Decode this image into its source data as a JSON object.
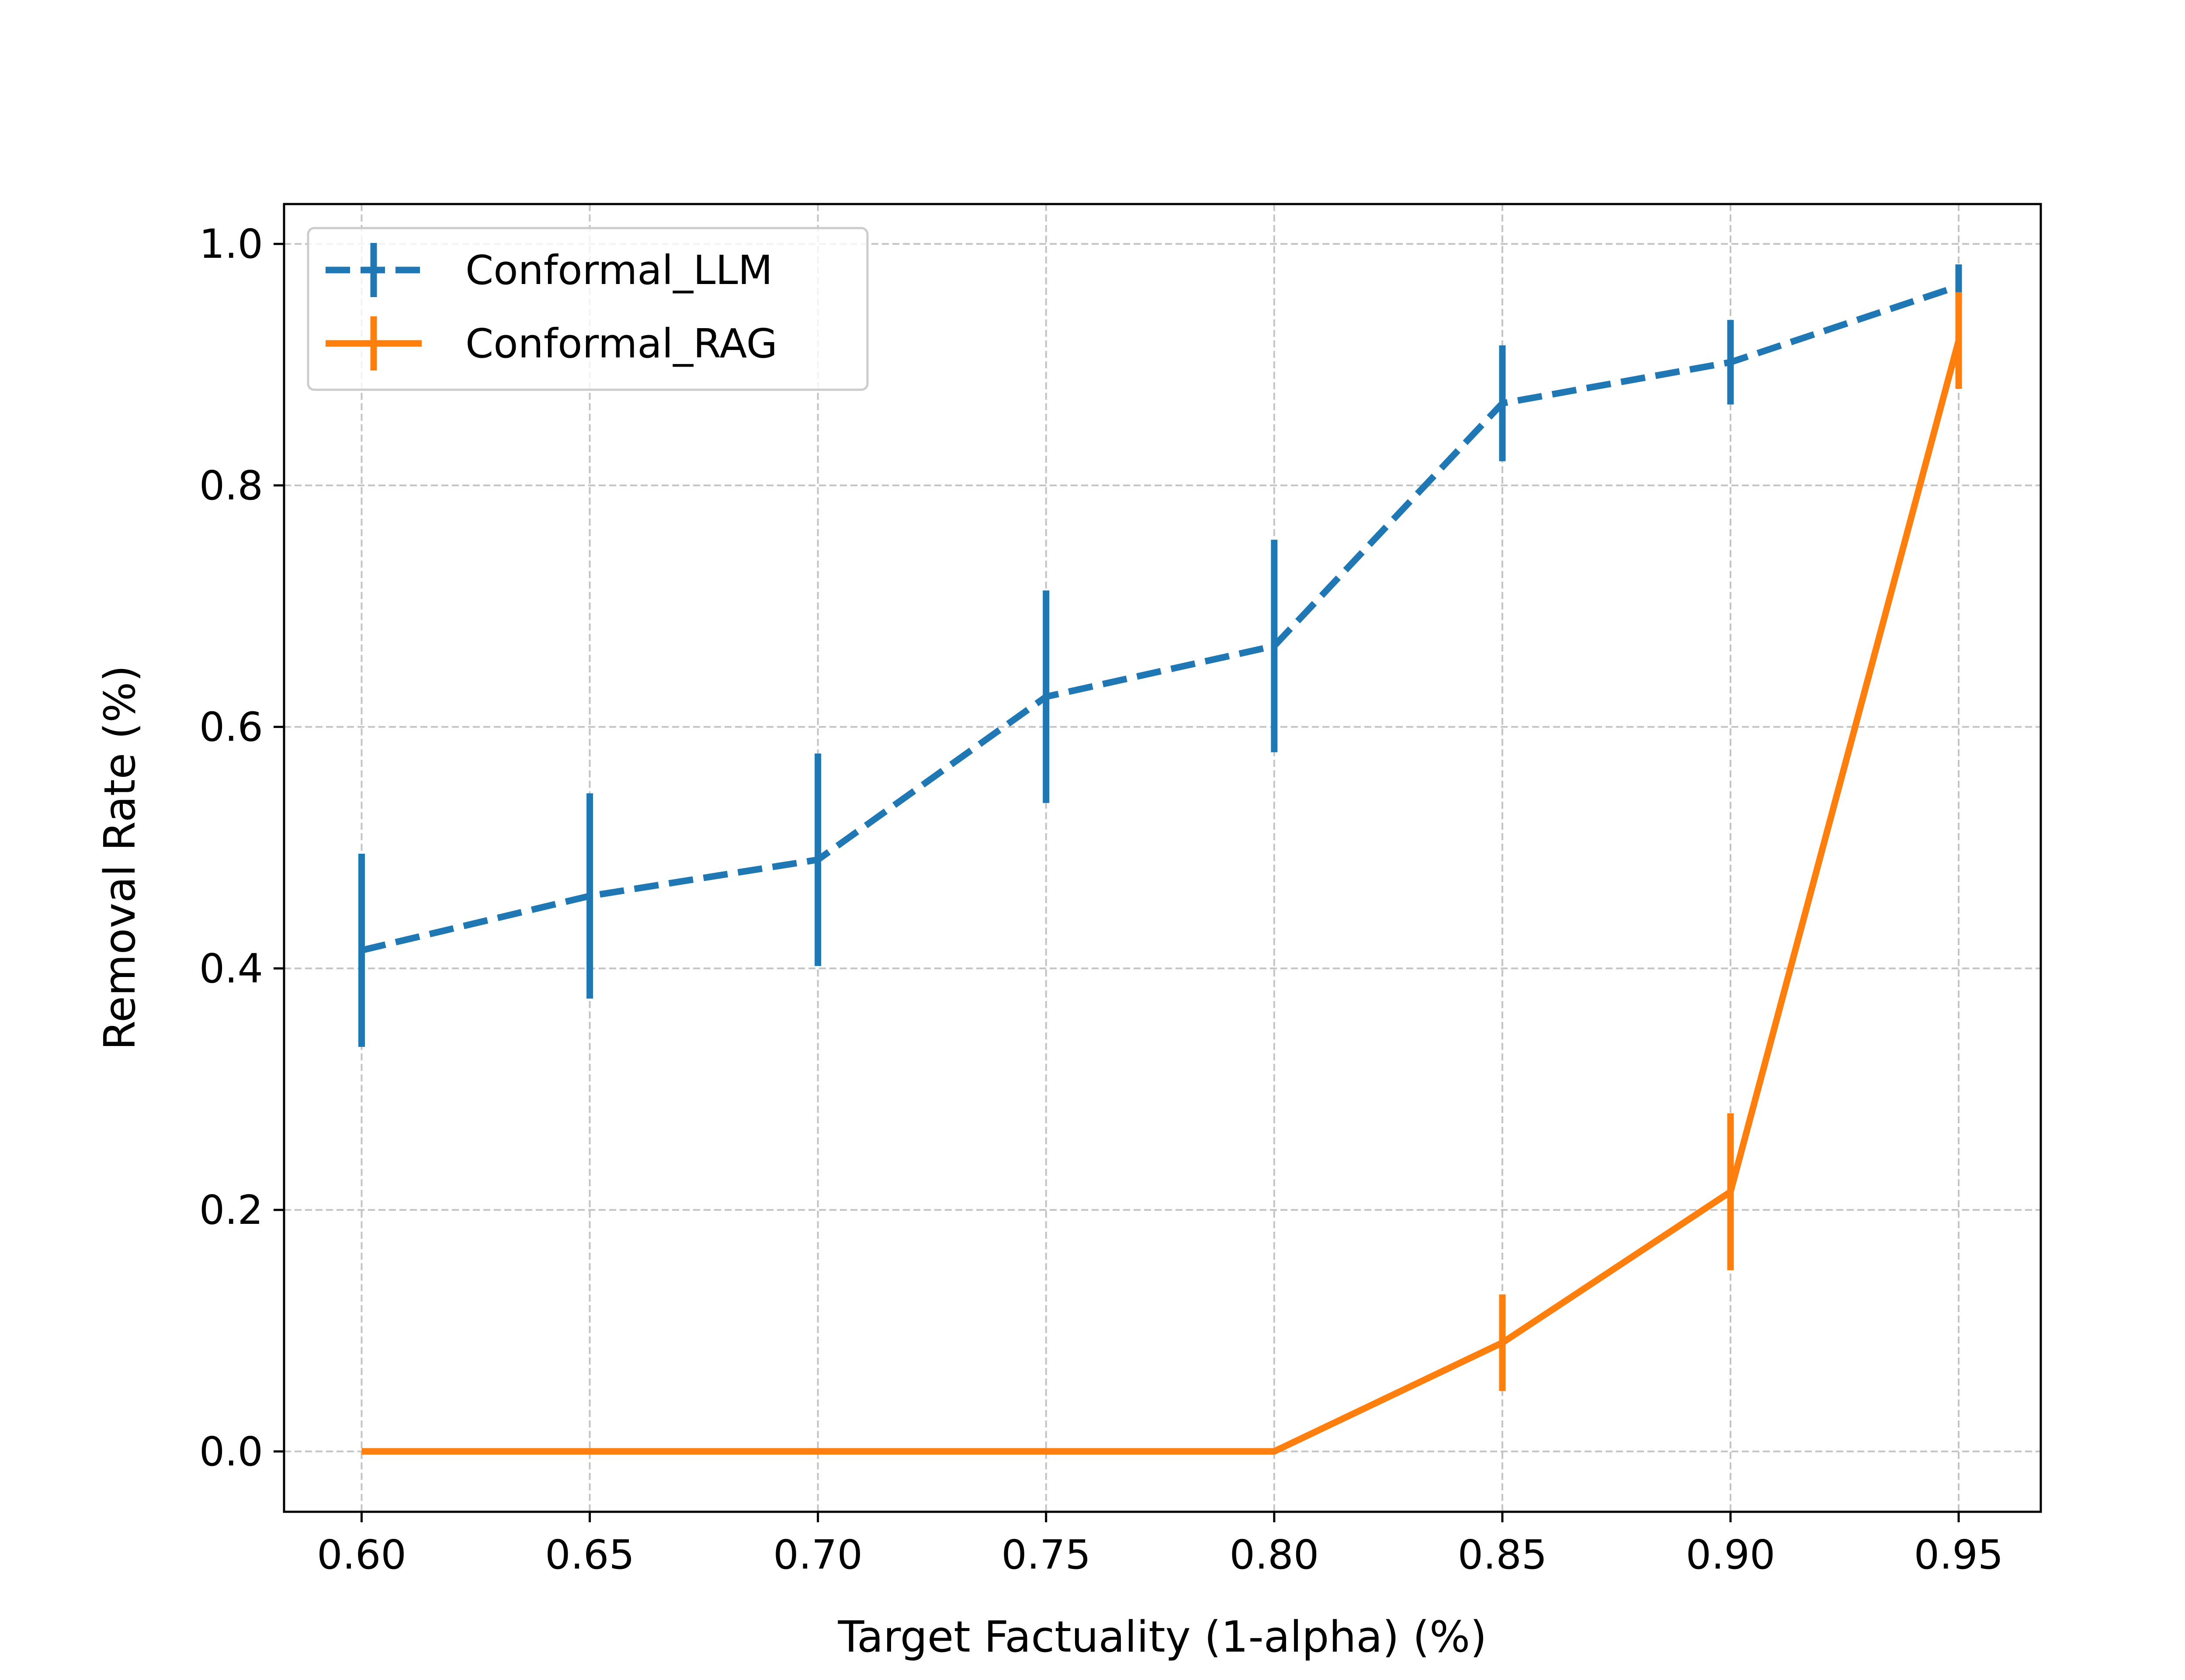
{
  "chart_data": {
    "type": "line",
    "title": "",
    "xlabel": "Target Factuality (1-alpha) (%)",
    "ylabel": "Removal Rate (%)",
    "x": [
      0.6,
      0.65,
      0.7,
      0.75,
      0.8,
      0.85,
      0.9,
      0.95
    ],
    "x_tick_labels": [
      "0.60",
      "0.65",
      "0.70",
      "0.75",
      "0.80",
      "0.85",
      "0.90",
      "0.95"
    ],
    "y_tick_values": [
      0.0,
      0.2,
      0.4,
      0.6,
      0.8,
      1.0
    ],
    "y_tick_labels": [
      "0.0",
      "0.2",
      "0.4",
      "0.6",
      "0.8",
      "1.0"
    ],
    "xlim": [
      0.583,
      0.968
    ],
    "ylim": [
      -0.05,
      1.033
    ],
    "grid": true,
    "legend_position": "top-left",
    "series": [
      {
        "name": "Conformal_LLM",
        "color": "#1f77b4",
        "style": "dashed",
        "y": [
          0.415,
          0.46,
          0.49,
          0.625,
          0.667,
          0.868,
          0.902,
          0.965
        ],
        "err": [
          0.08,
          0.085,
          0.088,
          0.088,
          0.088,
          0.048,
          0.035,
          0.018
        ]
      },
      {
        "name": "Conformal_RAG",
        "color": "#ff7f0e",
        "style": "solid",
        "y": [
          0.0,
          0.0,
          0.0,
          0.0,
          0.0,
          0.09,
          0.215,
          0.92
        ],
        "err": [
          0.0,
          0.0,
          0.0,
          0.0,
          0.0,
          0.04,
          0.065,
          0.04
        ]
      }
    ]
  }
}
